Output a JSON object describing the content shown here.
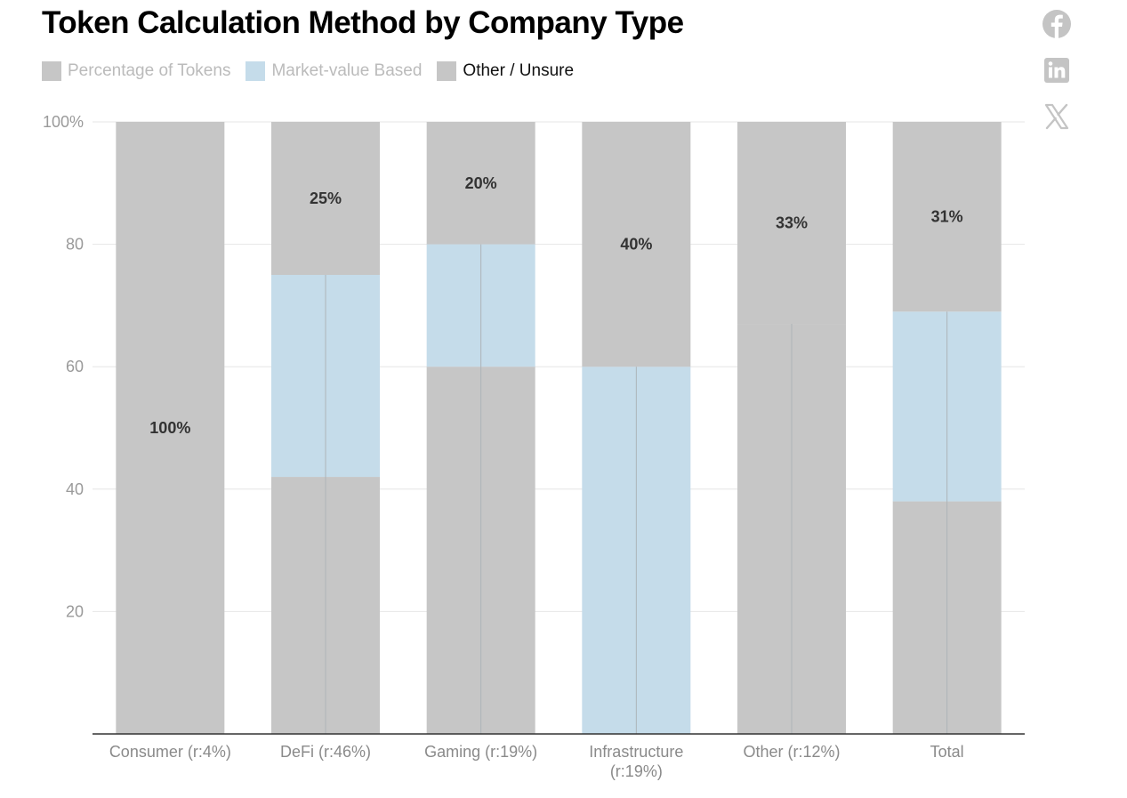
{
  "title": "Token Calculation Method by Company Type",
  "legend": [
    {
      "label": "Percentage of Tokens",
      "color": "#c6c6c6",
      "text_color": "#bbbbbb"
    },
    {
      "label": "Market-value Based",
      "color": "#c5dcea",
      "text_color": "#bbbbbb"
    },
    {
      "label": "Other / Unsure",
      "color": "#c6c6c6",
      "text_color": "#111111"
    }
  ],
  "share": {
    "facebook": "facebook-icon",
    "linkedin": "linkedin-icon",
    "x": "x-icon"
  },
  "colors": {
    "gray": "#c6c6c6",
    "blue": "#c5dcea",
    "grid": "#e6e6e6",
    "axis": "#333333"
  },
  "chart_data": {
    "type": "bar",
    "stacked": true,
    "categories": [
      "Consumer (r:4%)",
      "DeFi (r:46%)",
      "Gaming (r:19%)",
      "Infrastructure (r:19%)",
      "Other (r:12%)",
      "Total"
    ],
    "series": [
      {
        "name": "Percentage of Tokens",
        "values": [
          100,
          42,
          60,
          0,
          67,
          38
        ]
      },
      {
        "name": "Market-value Based",
        "values": [
          0,
          33,
          20,
          60,
          0,
          31
        ]
      },
      {
        "name": "Other / Unsure",
        "values": [
          0,
          25,
          20,
          40,
          33,
          31
        ]
      }
    ],
    "data_labels": [
      "100%",
      "25%",
      "20%",
      "40%",
      "33%",
      "31%"
    ],
    "y_ticks": [
      "100%",
      "80",
      "60",
      "40",
      "20"
    ],
    "y_tick_values": [
      100,
      80,
      60,
      40,
      20
    ],
    "ylim": [
      0,
      100
    ],
    "grid": true,
    "legend_position": "top-left"
  }
}
